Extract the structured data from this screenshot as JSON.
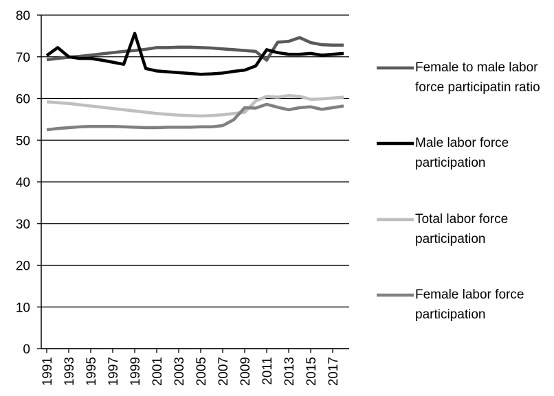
{
  "chart_data": {
    "type": "line",
    "x": [
      1991,
      1992,
      1993,
      1994,
      1995,
      1996,
      1997,
      1998,
      1999,
      2000,
      2001,
      2002,
      2003,
      2004,
      2005,
      2006,
      2007,
      2008,
      2009,
      2010,
      2011,
      2012,
      2013,
      2014,
      2015,
      2016,
      2017,
      2018
    ],
    "xlim": [
      1990.5,
      2018.5
    ],
    "xticks": [
      1991,
      1993,
      1995,
      1997,
      1999,
      2001,
      2003,
      2005,
      2007,
      2009,
      2011,
      2013,
      2015,
      2017
    ],
    "ylim": [
      0,
      80
    ],
    "yticks": [
      0,
      10,
      20,
      30,
      40,
      50,
      60,
      70,
      80
    ],
    "grid": true,
    "legend": "right",
    "series": [
      {
        "name": "Female to male labor force participatin ratio",
        "color": "#595959",
        "values": [
          69.3,
          69.6,
          69.9,
          70.1,
          70.4,
          70.7,
          71.0,
          71.3,
          71.5,
          71.8,
          72.2,
          72.2,
          72.3,
          72.3,
          72.2,
          72.1,
          71.9,
          71.7,
          71.5,
          71.3,
          69.2,
          73.5,
          73.7,
          74.6,
          73.4,
          72.9,
          72.8,
          72.8
        ]
      },
      {
        "name": "Male labor force participation",
        "color": "#000000",
        "values": [
          70.3,
          72.2,
          70.0,
          69.6,
          69.6,
          69.2,
          68.7,
          68.2,
          75.6,
          67.2,
          66.6,
          66.4,
          66.2,
          66.0,
          65.8,
          65.9,
          66.1,
          66.5,
          66.8,
          67.8,
          71.7,
          71.0,
          70.6,
          70.6,
          70.8,
          70.4,
          70.6,
          70.8
        ]
      },
      {
        "name": "Total labor force participation",
        "color": "#bfbfbf",
        "values": [
          59.2,
          59.0,
          58.8,
          58.5,
          58.2,
          57.9,
          57.6,
          57.3,
          57.0,
          56.7,
          56.4,
          56.2,
          56.0,
          55.9,
          55.8,
          55.9,
          56.1,
          56.4,
          56.7,
          59.4,
          60.5,
          60.3,
          60.7,
          60.5,
          59.8,
          59.9,
          60.1,
          60.3
        ]
      },
      {
        "name": "Female labor force participation",
        "color": "#808080",
        "values": [
          52.5,
          52.8,
          53.0,
          53.2,
          53.3,
          53.3,
          53.3,
          53.2,
          53.1,
          53.0,
          53.0,
          53.1,
          53.1,
          53.1,
          53.2,
          53.2,
          53.5,
          54.9,
          57.8,
          57.7,
          58.6,
          57.9,
          57.3,
          57.8,
          58.0,
          57.4,
          57.8,
          58.2
        ]
      }
    ]
  }
}
